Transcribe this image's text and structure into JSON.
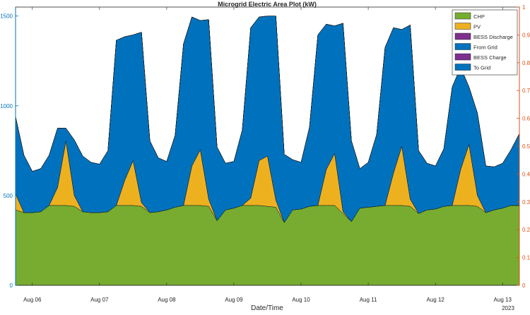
{
  "chart_data": {
    "type": "area",
    "title": "Microgrid Electric Area Plot (kW)",
    "xlabel": "Date/Time",
    "ylabel": "",
    "x_ticks": [
      "Aug 06",
      "Aug 07",
      "Aug 08",
      "Aug 09",
      "Aug 10",
      "Aug 11",
      "Aug 12",
      "Aug 13"
    ],
    "x_year_label": "2023",
    "xlim_days": [
      5.75,
      13.25
    ],
    "y_left": {
      "ticks": [
        "0",
        "500",
        "1000",
        "1500"
      ],
      "lim": [
        0,
        1550
      ],
      "color": "#0072BD"
    },
    "y_right": {
      "ticks": [
        "0",
        "0.1",
        "0.2",
        "0.3",
        "0.4",
        "0.5",
        "0.6",
        "0.7",
        "0.8",
        "0.9",
        "1"
      ],
      "lim": [
        0,
        1
      ],
      "color": "#D95319"
    },
    "grid": false,
    "legend_placement": "top-right",
    "legend": [
      {
        "label": "CHP",
        "color": "#77AC30"
      },
      {
        "label": "PV",
        "color": "#EDB120"
      },
      {
        "label": "BESS Discharge",
        "color": "#7E2F8E"
      },
      {
        "label": "From Grid",
        "color": "#0072BD"
      },
      {
        "label": "BESS Charge",
        "color": "#7E2F8E"
      },
      {
        "label": "To Grid",
        "color": "#0072BD"
      }
    ],
    "series_x_days": [
      5.75,
      5.875,
      6.0,
      6.125,
      6.25,
      6.375,
      6.5,
      6.625,
      6.75,
      6.875,
      7.0,
      7.125,
      7.25,
      7.375,
      7.5,
      7.625,
      7.75,
      7.875,
      8.0,
      8.125,
      8.25,
      8.375,
      8.5,
      8.625,
      8.75,
      8.875,
      9.0,
      9.125,
      9.25,
      9.375,
      9.5,
      9.625,
      9.75,
      9.875,
      10.0,
      10.125,
      10.25,
      10.375,
      10.5,
      10.625,
      10.75,
      10.875,
      11.0,
      11.125,
      11.25,
      11.375,
      11.5,
      11.625,
      11.75,
      11.875,
      12.0,
      12.125,
      12.25,
      12.375,
      12.5,
      12.625,
      12.75,
      12.875,
      13.0,
      13.125,
      13.25
    ],
    "series": [
      {
        "name": "CHP",
        "values": [
          420,
          405,
          405,
          410,
          445,
          445,
          445,
          440,
          410,
          405,
          405,
          410,
          445,
          445,
          445,
          440,
          405,
          410,
          420,
          435,
          445,
          445,
          445,
          440,
          360,
          420,
          430,
          445,
          445,
          445,
          440,
          435,
          350,
          420,
          425,
          440,
          445,
          445,
          445,
          400,
          355,
          430,
          435,
          440,
          445,
          445,
          445,
          440,
          400,
          420,
          425,
          440,
          445,
          445,
          445,
          440,
          405,
          420,
          430,
          445,
          445
        ]
      },
      {
        "name": "PV",
        "values": [
          90,
          0,
          0,
          0,
          0,
          100,
          360,
          60,
          0,
          0,
          0,
          0,
          0,
          140,
          250,
          20,
          0,
          0,
          0,
          0,
          0,
          220,
          310,
          40,
          0,
          0,
          0,
          0,
          40,
          250,
          280,
          40,
          0,
          0,
          0,
          0,
          0,
          200,
          290,
          10,
          0,
          0,
          0,
          0,
          0,
          180,
          330,
          40,
          0,
          0,
          0,
          0,
          0,
          200,
          340,
          60,
          0,
          0,
          0,
          0,
          0
        ]
      },
      {
        "name": "BESS Discharge",
        "values": [
          0,
          0,
          0,
          0,
          0,
          0,
          0,
          0,
          0,
          0,
          0,
          0,
          0,
          0,
          0,
          0,
          0,
          0,
          0,
          0,
          0,
          0,
          0,
          0,
          0,
          0,
          0,
          0,
          0,
          0,
          0,
          0,
          0,
          0,
          0,
          0,
          0,
          0,
          0,
          0,
          0,
          0,
          0,
          0,
          0,
          0,
          0,
          0,
          0,
          0,
          0,
          0,
          0,
          0,
          0,
          0,
          0,
          0,
          0,
          0,
          0
        ]
      },
      {
        "name": "From Grid",
        "values": [
          430,
          320,
          230,
          240,
          280,
          330,
          70,
          310,
          310,
          280,
          270,
          340,
          920,
          800,
          700,
          950,
          400,
          300,
          270,
          400,
          900,
          830,
          720,
          1000,
          410,
          260,
          260,
          420,
          950,
          800,
          780,
          1025,
          380,
          280,
          260,
          440,
          950,
          810,
          710,
          1050,
          450,
          220,
          250,
          400,
          880,
          810,
          650,
          970,
          350,
          260,
          240,
          320,
          660,
          570,
          320,
          460,
          260,
          240,
          250,
          310,
          400
        ]
      },
      {
        "name": "BESS Charge",
        "values": [
          0,
          0,
          0,
          0,
          0,
          0,
          0,
          0,
          0,
          0,
          0,
          0,
          0,
          0,
          0,
          0,
          0,
          0,
          0,
          0,
          0,
          0,
          0,
          0,
          0,
          0,
          0,
          0,
          0,
          0,
          0,
          0,
          0,
          0,
          0,
          0,
          0,
          0,
          0,
          0,
          0,
          0,
          0,
          0,
          0,
          0,
          0,
          0,
          0,
          0,
          0,
          0,
          0,
          0,
          0,
          0,
          0,
          0,
          0,
          0,
          0
        ]
      },
      {
        "name": "To Grid",
        "values": [
          0,
          0,
          0,
          0,
          0,
          0,
          0,
          0,
          0,
          0,
          0,
          0,
          0,
          0,
          0,
          0,
          0,
          0,
          0,
          0,
          0,
          0,
          0,
          0,
          0,
          0,
          0,
          0,
          0,
          0,
          0,
          0,
          0,
          0,
          0,
          0,
          0,
          0,
          0,
          0,
          0,
          0,
          0,
          0,
          0,
          0,
          0,
          0,
          0,
          0,
          0,
          0,
          0,
          0,
          0,
          0,
          0,
          0,
          0,
          0,
          0
        ]
      }
    ]
  }
}
